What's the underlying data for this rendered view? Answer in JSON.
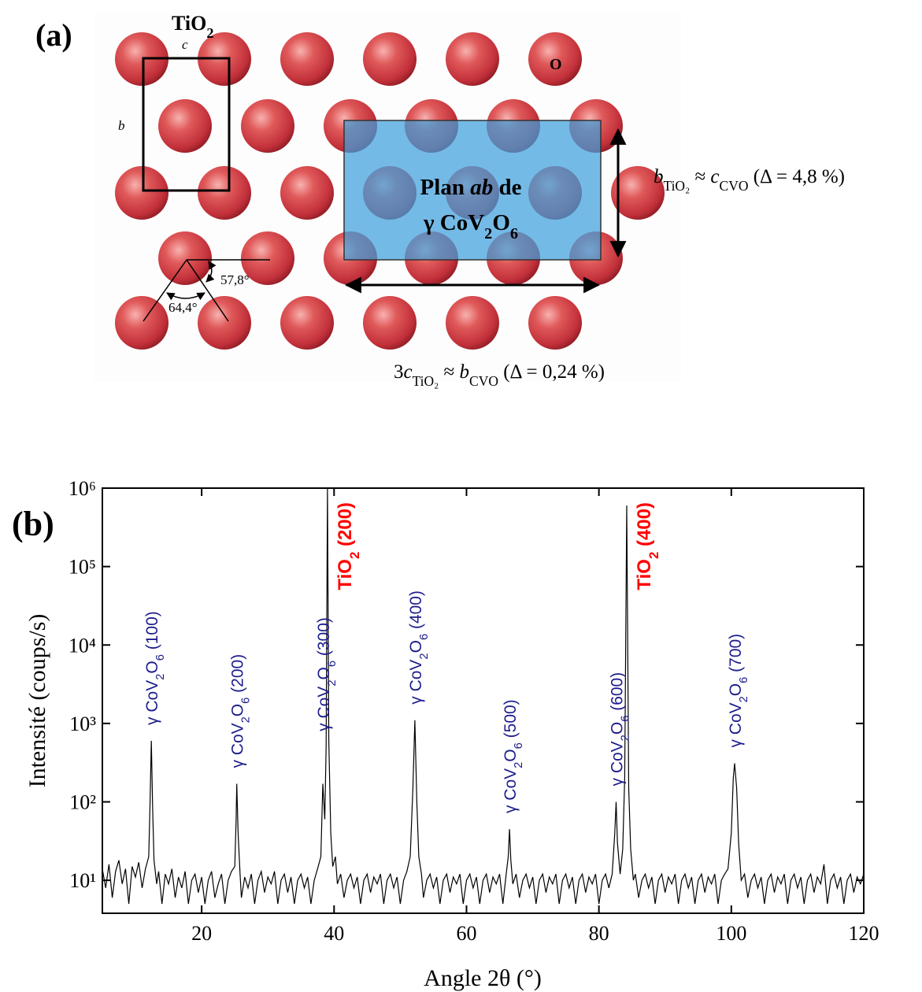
{
  "panel_a": {
    "label": "(a)",
    "title": [
      "TiO",
      "2"
    ],
    "axis_c": "c",
    "axis_b": "b",
    "atom": "O",
    "plane": [
      "Plan ",
      "ab",
      " de"
    ],
    "plane_compound": [
      "γ CoV",
      "2",
      "O",
      "6"
    ],
    "angle_1": "57,8°",
    "angle_2": "64,4°",
    "relation_1": [
      "b",
      "TiO₂",
      " ≈ ",
      "c",
      "CVO",
      " (Δ = 4,8 %)"
    ],
    "relation_2": [
      "3",
      "c",
      "TiO₂",
      " ≈ ",
      "b",
      "CVO",
      " (Δ = 0,24 %)"
    ]
  },
  "chart_data": {
    "type": "line",
    "panel_label": "(b)",
    "xlabel": "Angle 2θ (°)",
    "ylabel": "Intensité (coups/s)",
    "yscale": "log",
    "color": "#000000",
    "xlim": [
      5,
      120
    ],
    "xticks": [
      20,
      40,
      60,
      80,
      100,
      120
    ],
    "ylim": [
      3.8,
      1000000
    ],
    "yticks": [
      {
        "value": 10,
        "label": "10¹"
      },
      {
        "value": 100,
        "label": "10²"
      },
      {
        "value": 1000,
        "label": "10³"
      },
      {
        "value": 10000,
        "label": "10⁴"
      },
      {
        "value": 100000,
        "label": "10⁵"
      },
      {
        "value": 1000000,
        "label": "10⁶"
      }
    ],
    "x": [
      5,
      5.5,
      6,
      6.5,
      7,
      7.5,
      8,
      8.5,
      9,
      9.5,
      10,
      10.5,
      11,
      11.5,
      12,
      12.2,
      12.4,
      12.6,
      12.8,
      13.2,
      13.5,
      14,
      14.5,
      15,
      15.5,
      16,
      16.5,
      17,
      17.5,
      18,
      18.5,
      19,
      19.5,
      20,
      20.5,
      21,
      21.5,
      22,
      22.5,
      23,
      23.5,
      24,
      24.5,
      25,
      25.2,
      25.3,
      25.5,
      25.8,
      26,
      26.5,
      27,
      27.5,
      28,
      28.5,
      29,
      29.5,
      30,
      30.5,
      31,
      31.5,
      32,
      32.5,
      33,
      33.5,
      34,
      34.5,
      35,
      35.5,
      36,
      36.5,
      37,
      37.5,
      38,
      38.3,
      38.6,
      38.8,
      39,
      39.2,
      39.5,
      39.8,
      40.2,
      40.5,
      41,
      41.5,
      42,
      42.5,
      43,
      43.5,
      44,
      44.5,
      45,
      45.5,
      46,
      46.5,
      47,
      47.5,
      48,
      48.5,
      49,
      49.5,
      50,
      50.5,
      51,
      51.5,
      51.9,
      52.2,
      52.5,
      52.8,
      53.2,
      53.5,
      54,
      54.5,
      55,
      55.5,
      56,
      56.5,
      57,
      57.5,
      58,
      58.5,
      59,
      59.5,
      60,
      60.5,
      61,
      61.5,
      62,
      62.5,
      63,
      63.5,
      64,
      64.5,
      65,
      65.5,
      66,
      66.3,
      66.5,
      66.7,
      67,
      67.5,
      68,
      68.5,
      69,
      69.5,
      70,
      70.5,
      71,
      71.5,
      72,
      72.5,
      73,
      73.5,
      74,
      74.5,
      75,
      75.5,
      76,
      76.5,
      77,
      77.5,
      78,
      78.5,
      79,
      79.5,
      80,
      80.5,
      81,
      81.5,
      82,
      82.4,
      82.6,
      82.8,
      83.2,
      83.6,
      83.9,
      84.2,
      84.5,
      84.8,
      85.2,
      85.5,
      86,
      86.5,
      87,
      87.5,
      88,
      88.5,
      89,
      89.5,
      90,
      90.5,
      91,
      91.5,
      92,
      92.5,
      93,
      93.5,
      94,
      94.5,
      95,
      95.5,
      96,
      96.5,
      97,
      97.5,
      98,
      98.5,
      99,
      99.5,
      100,
      100.3,
      100.5,
      100.8,
      101.1,
      101.5,
      102,
      102.5,
      103,
      103.5,
      104,
      104.5,
      105,
      105.5,
      106,
      106.5,
      107,
      107.5,
      108,
      108.5,
      109,
      109.5,
      110,
      110.5,
      111,
      111.5,
      112,
      112.5,
      113,
      113.5,
      114,
      114.5,
      115,
      115.5,
      116,
      116.5,
      117,
      117.5,
      118,
      118.5,
      119,
      119.5,
      120
    ],
    "values": [
      14,
      8,
      16,
      6,
      13,
      18,
      9,
      14,
      5,
      15,
      11,
      17,
      8,
      14,
      20,
      90,
      600,
      80,
      18,
      9,
      13,
      5,
      12,
      9,
      14,
      6,
      11,
      8,
      13,
      5,
      10,
      12,
      7,
      11,
      5,
      10,
      13,
      6,
      9,
      12,
      5,
      10,
      13,
      15,
      60,
      170,
      40,
      12,
      6,
      11,
      8,
      12,
      5,
      10,
      13,
      7,
      11,
      9,
      13,
      5,
      10,
      12,
      7,
      11,
      5,
      10,
      12,
      8,
      11,
      5,
      10,
      14,
      20,
      170,
      60,
      500,
      1000000,
      600,
      40,
      15,
      20,
      9,
      12,
      6,
      10,
      12,
      8,
      11,
      5,
      10,
      12,
      7,
      11,
      9,
      12,
      5,
      10,
      12,
      8,
      11,
      5,
      10,
      13,
      20,
      150,
      1100,
      100,
      20,
      12,
      6,
      10,
      12,
      8,
      11,
      5,
      10,
      12,
      7,
      11,
      9,
      12,
      5,
      10,
      12,
      8,
      11,
      5,
      10,
      12,
      7,
      11,
      9,
      12,
      5,
      12,
      20,
      45,
      18,
      9,
      12,
      6,
      10,
      12,
      8,
      11,
      5,
      10,
      12,
      7,
      11,
      9,
      12,
      5,
      10,
      12,
      8,
      11,
      5,
      10,
      12,
      7,
      11,
      9,
      12,
      5,
      10,
      12,
      8,
      12,
      40,
      100,
      30,
      12,
      25,
      200,
      600000,
      150,
      25,
      10,
      12,
      6,
      10,
      12,
      8,
      11,
      5,
      10,
      12,
      7,
      11,
      9,
      12,
      5,
      10,
      12,
      8,
      11,
      5,
      10,
      12,
      7,
      11,
      9,
      12,
      5,
      10,
      12,
      14,
      40,
      200,
      310,
      150,
      30,
      10,
      12,
      6,
      10,
      12,
      8,
      11,
      5,
      10,
      12,
      7,
      11,
      9,
      12,
      5,
      10,
      12,
      8,
      11,
      5,
      10,
      12,
      7,
      11,
      9,
      16,
      5,
      10,
      12,
      8,
      11,
      5,
      10,
      12,
      7,
      11,
      9,
      12
    ],
    "annotations": [
      {
        "x": 12.4,
        "label": [
          "γ CoV",
          "2",
          "O",
          "6",
          " (100)"
        ],
        "color": "#1c1c8c"
      },
      {
        "x": 25.3,
        "label": [
          "γ CoV",
          "2",
          "O",
          "6",
          " (200)"
        ],
        "color": "#1c1c8c"
      },
      {
        "x": 38.3,
        "label": [
          "γ CoV",
          "2",
          "O",
          "6",
          " (300)"
        ],
        "color": "#1c1c8c"
      },
      {
        "x": 39,
        "label": [
          "TiO",
          "2",
          " (200)"
        ],
        "color": "#ff0000"
      },
      {
        "x": 52.2,
        "label": [
          "γ CoV",
          "2",
          "O",
          "6",
          " (400)"
        ],
        "color": "#1c1c8c"
      },
      {
        "x": 66.5,
        "label": [
          "γ CoV",
          "2",
          "O",
          "6",
          " (500)"
        ],
        "color": "#1c1c8c"
      },
      {
        "x": 82.6,
        "label": [
          "γ CoV",
          "2",
          "O",
          "6",
          " (600)"
        ],
        "color": "#1c1c8c"
      },
      {
        "x": 84.2,
        "label": [
          "TiO",
          "2",
          " (400)"
        ],
        "color": "#ff0000"
      },
      {
        "x": 100.5,
        "label": [
          "γ CoV",
          "2",
          "O",
          "6",
          " (700)"
        ],
        "color": "#1c1c8c"
      }
    ]
  }
}
